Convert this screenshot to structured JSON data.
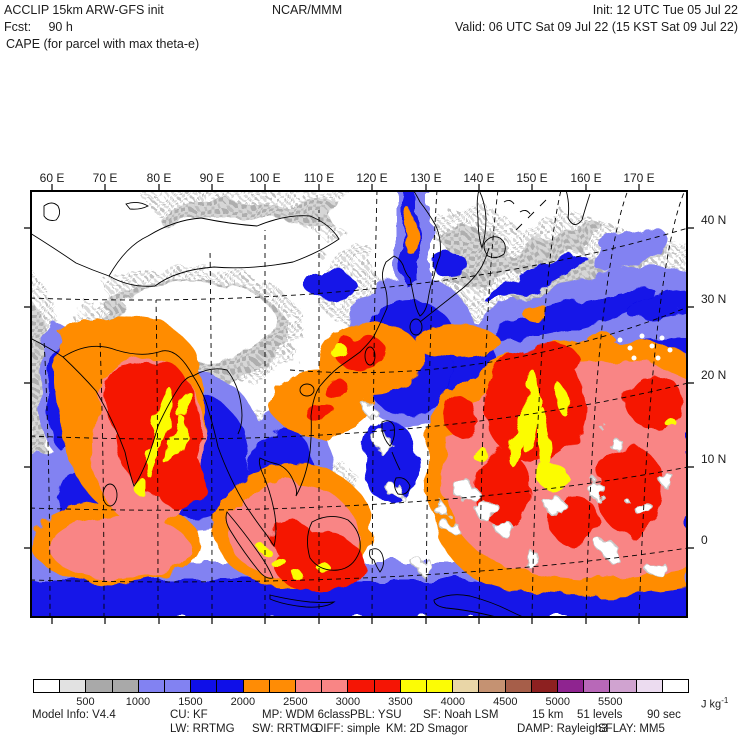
{
  "header": {
    "line1_left": "ACCLIP 15km ARW-GFS init",
    "line1_center": "NCAR/MMM",
    "line1_right": "Init: 12 UTC Tue 05 Jul 22",
    "line2_left": "Fcst:     90 h",
    "line2_right": "Valid: 06 UTC Sat 09 Jul 22 (15 KST Sat 09 Jul 22)",
    "line3": "CAPE (for parcel with max theta-e)"
  },
  "chart_data": {
    "type": "heatmap",
    "title": "CAPE (for parcel with max theta-e)",
    "x_axis": {
      "ticks": [
        "60 E",
        "70 E",
        "80 E",
        "90 E",
        "100 E",
        "110 E",
        "120 E",
        "130 E",
        "140 E",
        "150 E",
        "160 E",
        "170 E"
      ]
    },
    "y_axis": {
      "ticks": [
        "40 N",
        "30 N",
        "20 N",
        "10 N",
        "0"
      ]
    },
    "colorbar": {
      "unit_text": "J kg",
      "unit_exponent": "-1",
      "bin_start": 0,
      "bin_width": 250,
      "tick_labels": [
        "500",
        "1000",
        "1500",
        "2000",
        "2500",
        "3000",
        "3500",
        "4000",
        "4500",
        "5000",
        "5500"
      ],
      "colors": [
        "#ffffff",
        "#e2e2e2",
        "#a9a9a9",
        "#a9a9a9",
        "#8282f2",
        "#8282f2",
        "#0f0fe8",
        "#0f0fe8",
        "#ff8c05",
        "#ff8c05",
        "#f98585",
        "#f98585",
        "#f51505",
        "#f51505",
        "#fcfc05",
        "#fcfc05",
        "#e9d6a7",
        "#c59272",
        "#a65e49",
        "#8d2020",
        "#8f2490",
        "#b868b8",
        "#d0a3d0",
        "#ecdcf0",
        "#ffffff"
      ]
    }
  },
  "model_info": {
    "line1": [
      "Model Info: V4.4",
      "CU: KF",
      "MP: WDM 6class",
      "PBL: YSU",
      "SF: Noah LSM",
      "15 km",
      "51 levels",
      "90 sec"
    ],
    "line2": [
      "LW: RRTMG",
      "SW: RRTMG",
      "DIFF: simple",
      "KM: 2D Smagor",
      "DAMP: Rayleigh3",
      "SFLAY: MM5"
    ]
  }
}
